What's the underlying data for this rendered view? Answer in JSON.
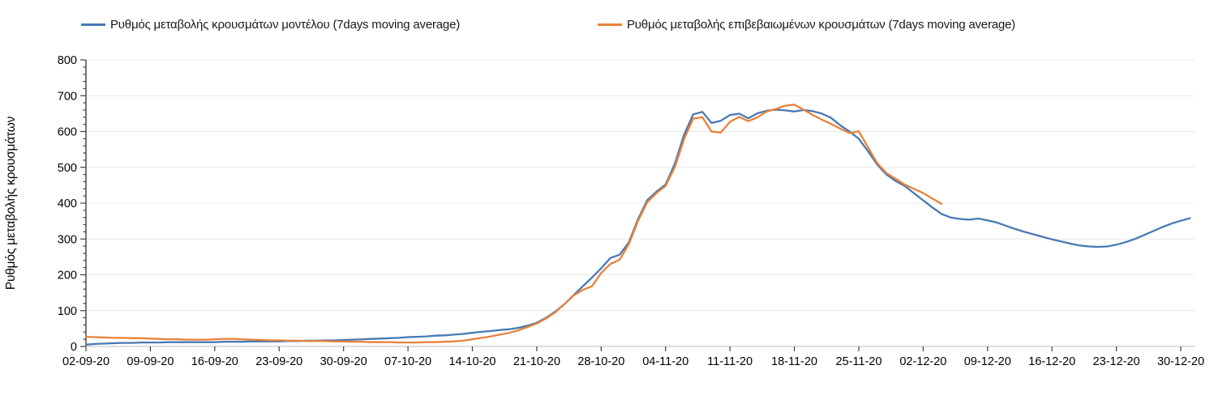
{
  "legend": {
    "items": [
      {
        "label": "Ρυθμός μεταβολής κρουσμάτων μοντέλου (7days moving average)",
        "color": "#4878B4"
      },
      {
        "label": "Ρυθμός μεταβολής επιβεβαιωμένων κρουσμάτων (7days moving average)",
        "color": "#E8823A"
      }
    ]
  },
  "chart_data": {
    "type": "line",
    "title": "",
    "xlabel": "",
    "ylabel": "Ρυθμός μεταβολής κρουσμάτων",
    "ylim": [
      0,
      800
    ],
    "y_ticks": [
      0,
      100,
      200,
      300,
      400,
      500,
      600,
      700,
      800
    ],
    "y_minor_tick_step": 20,
    "grid": "horizontal",
    "legend_position": "top",
    "x_tick_labels": [
      "02-09-20",
      "09-09-20",
      "16-09-20",
      "23-09-20",
      "30-09-20",
      "07-10-20",
      "14-10-20",
      "21-10-20",
      "28-10-20",
      "04-11-20",
      "11-11-20",
      "18-11-20",
      "25-11-20",
      "02-12-20",
      "09-12-20",
      "16-12-20",
      "23-12-20",
      "30-12-20"
    ],
    "days_between_ticks": 7,
    "x_start_date": "02-09-20",
    "series": [
      {
        "name": "Ρυθμός μεταβολής κρουσμάτων μοντέλου (7days moving average)",
        "color": "#4878B4",
        "start_day_offset": 0,
        "last_date": "31-12-20",
        "values": [
          5,
          7,
          8,
          9,
          10,
          10,
          11,
          11,
          11,
          12,
          12,
          12,
          12,
          12,
          12,
          13,
          13,
          13,
          14,
          14,
          14,
          14,
          15,
          15,
          16,
          16,
          17,
          17,
          18,
          19,
          20,
          21,
          22,
          23,
          24,
          26,
          27,
          28,
          30,
          31,
          33,
          35,
          38,
          41,
          43,
          46,
          48,
          52,
          58,
          66,
          80,
          97,
          118,
          143,
          168,
          192,
          218,
          247,
          256,
          290,
          355,
          408,
          432,
          452,
          510,
          590,
          648,
          655,
          624,
          630,
          646,
          650,
          637,
          651,
          658,
          661,
          659,
          656,
          660,
          657,
          650,
          638,
          617,
          600,
          580,
          545,
          508,
          480,
          462,
          448,
          428,
          408,
          388,
          370,
          360,
          356,
          354,
          357,
          352,
          346,
          337,
          328,
          320,
          313,
          306,
          299,
          293,
          287,
          282,
          279,
          278,
          279,
          284,
          291,
          300,
          311,
          322,
          333,
          343,
          351,
          358
        ]
      },
      {
        "name": "Ρυθμός μεταβολής επιβεβαιωμένων κρουσμάτων (7days moving average)",
        "color": "#E8823A",
        "start_day_offset": 0,
        "last_date": "04-12-20",
        "values": [
          27,
          26,
          25,
          24,
          24,
          23,
          23,
          22,
          21,
          20,
          20,
          19,
          19,
          19,
          20,
          21,
          21,
          20,
          19,
          18,
          17,
          17,
          16,
          16,
          15,
          15,
          15,
          14,
          14,
          13,
          13,
          12,
          12,
          12,
          11,
          11,
          11,
          12,
          12,
          13,
          14,
          16,
          20,
          24,
          28,
          33,
          38,
          45,
          54,
          64,
          78,
          95,
          118,
          142,
          158,
          168,
          205,
          230,
          242,
          285,
          350,
          402,
          428,
          448,
          500,
          578,
          636,
          640,
          600,
          597,
          627,
          641,
          629,
          640,
          656,
          663,
          672,
          675,
          661,
          646,
          633,
          621,
          608,
          596,
          601,
          556,
          512,
          484,
          468,
          452,
          440,
          428,
          413,
          398
        ]
      }
    ]
  }
}
